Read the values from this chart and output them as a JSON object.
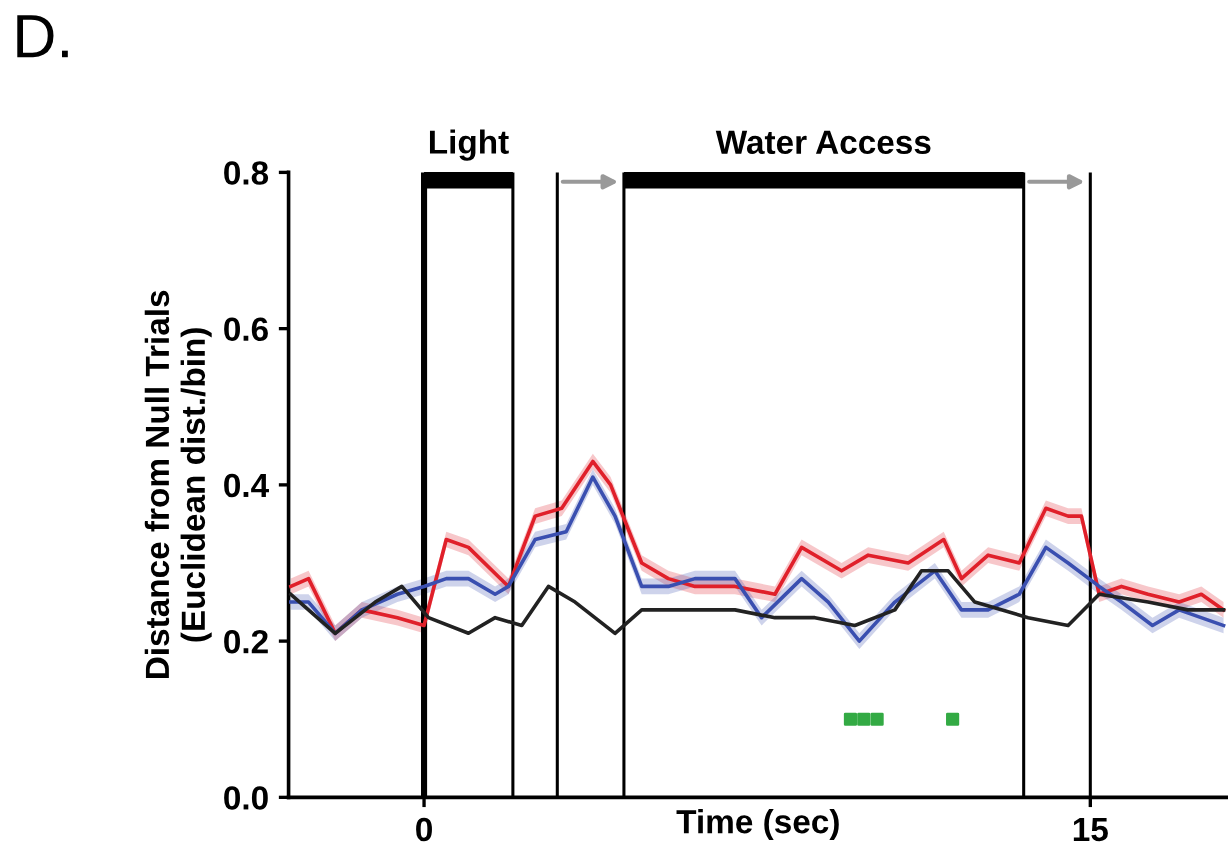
{
  "chart_data": {
    "type": "line",
    "title": "D.",
    "xlabel": "Time (sec)",
    "ylabel": "Distance from Null Trials\n(Euclidean dist./bin)",
    "xlim": [
      -3.05,
      18.1
    ],
    "ylim": [
      0,
      0.8
    ],
    "xticks": [
      0,
      15
    ],
    "yticks": [
      {
        "value": 0,
        "label": "0.0"
      },
      {
        "value": 0.2,
        "label": "0.2"
      },
      {
        "value": 0.4,
        "label": "0.4"
      },
      {
        "value": 0.6,
        "label": "0.6"
      },
      {
        "value": 0.8,
        "label": "0.8"
      }
    ],
    "grid": false,
    "marker": "none",
    "line_style": "solid",
    "series": [
      {
        "color": "#e0202a",
        "x": [
          -3.0,
          -2.6,
          -2.0,
          -1.4,
          -0.6,
          0.0,
          0.5,
          1.0,
          1.9,
          2.5,
          3.1,
          3.8,
          4.2,
          4.9,
          5.5,
          6.1,
          7.0,
          7.9,
          8.5,
          9.4,
          10.0,
          10.9,
          11.7,
          12.1,
          12.7,
          13.4,
          14.0,
          14.5,
          14.8,
          15.2,
          15.7,
          16.3,
          17.0,
          17.5,
          18.0
        ],
        "values": [
          0.27,
          0.28,
          0.21,
          0.24,
          0.23,
          0.22,
          0.33,
          0.32,
          0.27,
          0.36,
          0.37,
          0.43,
          0.4,
          0.3,
          0.28,
          0.27,
          0.27,
          0.26,
          0.32,
          0.29,
          0.31,
          0.3,
          0.33,
          0.28,
          0.31,
          0.3,
          0.37,
          0.36,
          0.36,
          0.26,
          0.27,
          0.26,
          0.25,
          0.26,
          0.24
        ],
        "lower": [
          0.26,
          0.27,
          0.2,
          0.23,
          0.22,
          0.21,
          0.32,
          0.31,
          0.26,
          0.35,
          0.36,
          0.42,
          0.39,
          0.29,
          0.27,
          0.26,
          0.26,
          0.25,
          0.31,
          0.28,
          0.3,
          0.29,
          0.32,
          0.27,
          0.3,
          0.29,
          0.36,
          0.35,
          0.35,
          0.25,
          0.26,
          0.25,
          0.24,
          0.25,
          0.23
        ],
        "upper": [
          0.28,
          0.29,
          0.22,
          0.25,
          0.24,
          0.23,
          0.34,
          0.33,
          0.28,
          0.37,
          0.38,
          0.44,
          0.41,
          0.31,
          0.29,
          0.28,
          0.28,
          0.27,
          0.33,
          0.3,
          0.32,
          0.31,
          0.34,
          0.29,
          0.32,
          0.31,
          0.38,
          0.37,
          0.37,
          0.27,
          0.28,
          0.27,
          0.26,
          0.27,
          0.25
        ]
      },
      {
        "color": "#3a4fb0",
        "x": [
          -3.0,
          -2.6,
          -2.0,
          -1.4,
          -0.6,
          0.0,
          0.5,
          1.0,
          1.6,
          1.9,
          2.5,
          3.2,
          3.8,
          4.3,
          4.9,
          5.5,
          6.1,
          7.0,
          7.6,
          8.5,
          9.1,
          9.8,
          10.6,
          11.5,
          12.1,
          12.7,
          13.4,
          14.0,
          14.5,
          15.2,
          15.7,
          16.4,
          17.0,
          18.0
        ],
        "values": [
          0.25,
          0.25,
          0.21,
          0.24,
          0.26,
          0.27,
          0.28,
          0.28,
          0.26,
          0.27,
          0.33,
          0.34,
          0.41,
          0.36,
          0.27,
          0.27,
          0.28,
          0.28,
          0.23,
          0.28,
          0.25,
          0.2,
          0.25,
          0.29,
          0.24,
          0.24,
          0.26,
          0.32,
          0.3,
          0.27,
          0.25,
          0.22,
          0.24,
          0.22
        ],
        "lower": [
          0.24,
          0.24,
          0.2,
          0.23,
          0.25,
          0.26,
          0.27,
          0.27,
          0.25,
          0.26,
          0.32,
          0.33,
          0.4,
          0.35,
          0.26,
          0.26,
          0.27,
          0.27,
          0.22,
          0.27,
          0.24,
          0.19,
          0.24,
          0.28,
          0.23,
          0.23,
          0.25,
          0.31,
          0.29,
          0.26,
          0.24,
          0.21,
          0.23,
          0.21
        ],
        "upper": [
          0.26,
          0.26,
          0.22,
          0.25,
          0.27,
          0.28,
          0.29,
          0.29,
          0.27,
          0.28,
          0.34,
          0.35,
          0.42,
          0.37,
          0.28,
          0.28,
          0.29,
          0.29,
          0.24,
          0.29,
          0.26,
          0.21,
          0.26,
          0.3,
          0.25,
          0.25,
          0.27,
          0.33,
          0.31,
          0.28,
          0.26,
          0.23,
          0.25,
          0.23
        ]
      },
      {
        "color": "#222222",
        "x": [
          -3.0,
          -2.0,
          -1.1,
          -0.5,
          0.1,
          1.0,
          1.6,
          2.2,
          2.8,
          3.4,
          4.3,
          4.9,
          6.1,
          7.0,
          7.9,
          8.8,
          9.7,
          10.6,
          11.2,
          11.8,
          12.4,
          13.6,
          14.5,
          15.2,
          16.3,
          17.2,
          18.0
        ],
        "values": [
          0.26,
          0.21,
          0.25,
          0.27,
          0.23,
          0.21,
          0.23,
          0.22,
          0.27,
          0.25,
          0.21,
          0.24,
          0.24,
          0.24,
          0.23,
          0.23,
          0.22,
          0.24,
          0.29,
          0.29,
          0.25,
          0.23,
          0.22,
          0.26,
          0.25,
          0.24,
          0.24
        ]
      },
      {
        "type": "scatter",
        "marker": "square",
        "color": "#33aa44",
        "x": [
          9.6,
          9.9,
          10.2,
          11.9
        ],
        "values": [
          0.1,
          0.1,
          0.1,
          0.1
        ]
      },
      {
        "name": "Light",
        "type": "line",
        "color": "#000000",
        "x": [
          0,
          2
        ],
        "values": [
          0.79,
          0.79
        ]
      },
      {
        "name": "Water Access",
        "type": "line",
        "color": "#000000",
        "x": [
          4.5,
          13.5
        ],
        "values": [
          0.79,
          0.79
        ]
      }
    ],
    "ref_lines": [
      {
        "axis": "x",
        "value": 0,
        "color": "#000000"
      },
      {
        "axis": "x",
        "value": 2,
        "color": "#000000"
      },
      {
        "axis": "x",
        "value": 3,
        "color": "#000000"
      },
      {
        "axis": "x",
        "value": 4.5,
        "color": "#000000"
      },
      {
        "axis": "x",
        "value": 13.5,
        "color": "#000000"
      },
      {
        "axis": "x",
        "value": 15,
        "color": "#000000"
      }
    ],
    "legend": false
  }
}
